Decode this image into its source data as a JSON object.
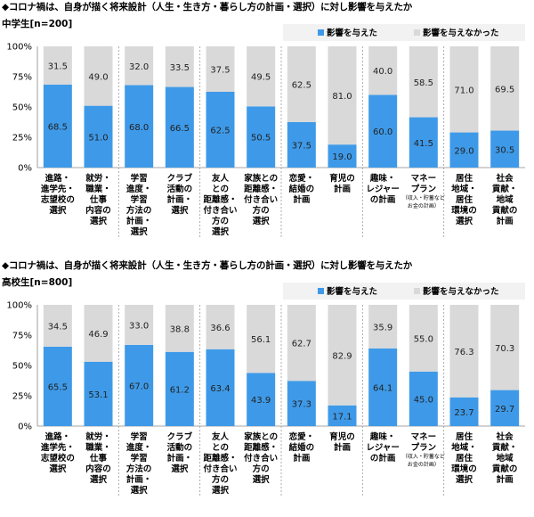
{
  "colors": {
    "affected": "#3e9ae8",
    "not_affected": "#d9d9d9"
  },
  "chart_data": [
    {
      "type": "bar",
      "stacked": true,
      "orientation": "vertical",
      "title": "◆コロナ禍は、自身が描く将来設計（人生・生き方・暮らし方の計画・選択）に対し影響を与えたか",
      "group_label": "中学生[n=200]",
      "categories": [
        [
          "進路・",
          "進学先・",
          "志望校の",
          "選択"
        ],
        [
          "就労・",
          "職業・",
          "仕事",
          "内容の",
          "選択"
        ],
        [
          "学習",
          "進度・",
          "学習",
          "方法の",
          "計画・",
          "選択"
        ],
        [
          "クラブ",
          "活動の",
          "計画・",
          "選択"
        ],
        [
          "友人",
          "との",
          "距離感・",
          "付き合い",
          "方の",
          "選択"
        ],
        [
          "家族との",
          "距離感・",
          "付き合い",
          "方の",
          "選択"
        ],
        [
          "恋愛・",
          "結婚の",
          "計画"
        ],
        [
          "育児の",
          "計画"
        ],
        [
          "趣味・",
          "レジャー",
          "の計画"
        ],
        [
          "マネー",
          "プラン",
          "（収入・貯蓄など",
          "お金の計画）"
        ],
        [
          "居住",
          "地域・",
          "居住",
          "環境の",
          "選択"
        ],
        [
          "社会",
          "貢献・",
          "地域",
          "貢献の",
          "計画"
        ]
      ],
      "series": [
        {
          "name": "影響を与えた",
          "values": [
            68.5,
            51.0,
            68.0,
            66.5,
            62.5,
            50.5,
            37.5,
            19.0,
            60.0,
            41.5,
            29.0,
            30.5
          ]
        },
        {
          "name": "影響を与えなかった",
          "values": [
            31.5,
            49.0,
            32.0,
            33.5,
            37.5,
            49.5,
            62.5,
            81.0,
            40.0,
            58.5,
            71.0,
            69.5
          ]
        }
      ],
      "value_labels": {
        "affected": [
          "68.5",
          "51.0",
          "68.0",
          "66.5",
          "62.5",
          "50.5",
          "37.5",
          "19.0",
          "60.0",
          "41.5",
          "29.0",
          "30.5"
        ],
        "not_affected": [
          "31.5",
          "49.0",
          "32.0",
          "33.5",
          "37.5",
          "49.5",
          "62.5",
          "81.0",
          "40.0",
          "58.5",
          "71.0",
          "69.5"
        ]
      },
      "y_ticks": [
        "0%",
        "25%",
        "50%",
        "75%",
        "100%"
      ],
      "ylim": [
        0,
        100
      ],
      "grid": false,
      "legend_position": "top-right",
      "group_separators_after": [
        1,
        3,
        5,
        7,
        9
      ]
    },
    {
      "type": "bar",
      "stacked": true,
      "orientation": "vertical",
      "title": "◆コロナ禍は、自身が描く将来設計（人生・生き方・暮らし方の計画・選択）に対し影響を与えたか",
      "group_label": "高校生[n=800]",
      "categories": [
        [
          "進路・",
          "進学先・",
          "志望校の",
          "選択"
        ],
        [
          "就労・",
          "職業・",
          "仕事",
          "内容の",
          "選択"
        ],
        [
          "学習",
          "進度・",
          "学習",
          "方法の",
          "計画・",
          "選択"
        ],
        [
          "クラブ",
          "活動の",
          "計画・",
          "選択"
        ],
        [
          "友人",
          "との",
          "距離感・",
          "付き合い",
          "方の",
          "選択"
        ],
        [
          "家族との",
          "距離感・",
          "付き合い",
          "方の",
          "選択"
        ],
        [
          "恋愛・",
          "結婚の",
          "計画"
        ],
        [
          "育児の",
          "計画"
        ],
        [
          "趣味・",
          "レジャー",
          "の計画"
        ],
        [
          "マネー",
          "プラン",
          "（収入・貯蓄など",
          "お金の計画）"
        ],
        [
          "居住",
          "地域・",
          "居住",
          "環境の",
          "選択"
        ],
        [
          "社会",
          "貢献・",
          "地域",
          "貢献の",
          "計画"
        ]
      ],
      "series": [
        {
          "name": "影響を与えた",
          "values": [
            65.5,
            53.1,
            67.0,
            61.2,
            63.4,
            43.9,
            37.3,
            17.1,
            64.1,
            45.0,
            23.7,
            29.7
          ]
        },
        {
          "name": "影響を与えなかった",
          "values": [
            34.5,
            46.9,
            33.0,
            38.8,
            36.6,
            56.1,
            62.7,
            82.9,
            35.9,
            55.0,
            76.3,
            70.3
          ]
        }
      ],
      "value_labels": {
        "affected": [
          "65.5",
          "53.1",
          "67.0",
          "61.2",
          "63.4",
          "43.9",
          "37.3",
          "17.1",
          "64.1",
          "45.0",
          "23.7",
          "29.7"
        ],
        "not_affected": [
          "34.5",
          "46.9",
          "33.0",
          "38.8",
          "36.6",
          "56.1",
          "62.7",
          "82.9",
          "35.9",
          "55.0",
          "76.3",
          "70.3"
        ]
      },
      "y_ticks": [
        "0%",
        "25%",
        "50%",
        "75%",
        "100%"
      ],
      "ylim": [
        0,
        100
      ],
      "grid": false,
      "legend_position": "top-right",
      "group_separators_after": [
        1,
        3,
        5,
        7,
        9
      ]
    }
  ]
}
